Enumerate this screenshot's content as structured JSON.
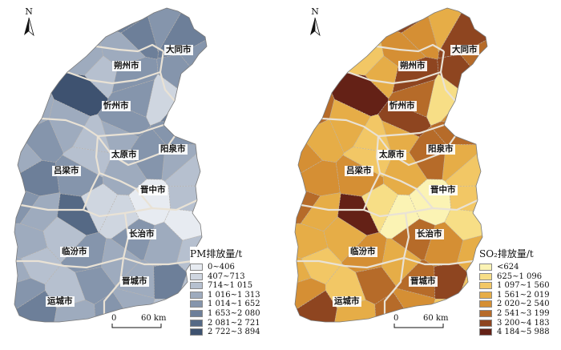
{
  "maps": [
    {
      "name": "pm",
      "legend_title": "PM排放量/t",
      "legend": [
        {
          "label": "0~406",
          "color": "#e7ebf1"
        },
        {
          "label": "407~713",
          "color": "#cfd6e0"
        },
        {
          "label": "714~1 015",
          "color": "#b6c0cf"
        },
        {
          "label": "1 016~1 313",
          "color": "#9eabbe"
        },
        {
          "label": "1 014~1 652",
          "color": "#8595ac"
        },
        {
          "label": "1 653~2 080",
          "color": "#6d7f99"
        },
        {
          "label": "2 081~2 721",
          "color": "#556985"
        },
        {
          "label": "2 722~3 894",
          "color": "#3e5270"
        }
      ]
    },
    {
      "name": "so2",
      "legend_title": "SO₂排放量/t",
      "legend": [
        {
          "label": "<624",
          "color": "#fbf3b4"
        },
        {
          "label": "625~1 096",
          "color": "#f7de86"
        },
        {
          "label": "1 097~1 560",
          "color": "#f2c765"
        },
        {
          "label": "1 561~2 019",
          "color": "#e6ad47"
        },
        {
          "label": "2 020~2 540",
          "color": "#d58f34"
        },
        {
          "label": "2 541~3 199",
          "color": "#b66b29"
        },
        {
          "label": "3 200~4 183",
          "color": "#8e4520"
        },
        {
          "label": "4 184~5 988",
          "color": "#642116"
        }
      ]
    }
  ],
  "cities": [
    "大同市",
    "朔州市",
    "忻州市",
    "太原市",
    "阳泉市",
    "吕梁市",
    "晋中市",
    "长治市",
    "临汾市",
    "晋城市",
    "运城市"
  ],
  "north_label": "N",
  "scale": {
    "start": "0",
    "end": "60 km"
  },
  "regions": [
    {
      "pm": 7,
      "so2": 7
    },
    {
      "pm": 5,
      "so2": 5
    },
    {
      "pm": 5,
      "so2": 6
    },
    {
      "pm": 4,
      "so2": 3
    },
    {
      "pm": 3,
      "so2": 2
    },
    {
      "pm": 4,
      "so2": 5
    },
    {
      "pm": 5,
      "so2": 4
    },
    {
      "pm": 5,
      "so2": 6
    },
    {
      "pm": 3,
      "so2": 3
    },
    {
      "pm": 3,
      "so2": 2
    },
    {
      "pm": 3,
      "so2": 4
    },
    {
      "pm": 4,
      "so2": 5
    },
    {
      "pm": 3,
      "so2": 4
    },
    {
      "pm": 2,
      "so2": 3
    },
    {
      "pm": 4,
      "so2": 6
    },
    {
      "pm": 4,
      "so2": 6
    },
    {
      "pm": 2,
      "so2": 1
    },
    {
      "pm": 7,
      "so2": 7
    },
    {
      "pm": 4,
      "so2": 5
    },
    {
      "pm": 1,
      "so2": 1
    },
    {
      "pm": 3,
      "so2": 5
    },
    {
      "pm": 3,
      "so2": 3
    },
    {
      "pm": 4,
      "so2": 6
    },
    {
      "pm": 5,
      "so2": 4
    },
    {
      "pm": 4,
      "so2": 3
    },
    {
      "pm": 2,
      "so2": 2
    },
    {
      "pm": 3,
      "so2": 3
    },
    {
      "pm": 4,
      "so2": 5
    },
    {
      "pm": 3,
      "so2": 4
    },
    {
      "pm": 2,
      "so2": 2
    },
    {
      "pm": 4,
      "so2": 5
    },
    {
      "pm": 3,
      "so2": 3
    },
    {
      "pm": 5,
      "so2": 4
    },
    {
      "pm": 4,
      "so2": 4
    },
    {
      "pm": 3,
      "so2": 3
    },
    {
      "pm": 2,
      "so2": 2
    },
    {
      "pm": 4,
      "so2": 5
    },
    {
      "pm": 1,
      "so2": 1
    },
    {
      "pm": 0,
      "so2": 0
    },
    {
      "pm": 2,
      "so2": 2
    },
    {
      "pm": 3,
      "so2": 3
    },
    {
      "pm": 6,
      "so2": 7
    },
    {
      "pm": 1,
      "so2": 0
    },
    {
      "pm": 0,
      "so2": 1
    },
    {
      "pm": 3,
      "so2": 3
    },
    {
      "pm": 2,
      "so2": 3
    },
    {
      "pm": 4,
      "so2": 5
    },
    {
      "pm": 3,
      "so2": 4
    },
    {
      "pm": 2,
      "so2": 2
    },
    {
      "pm": 4,
      "so2": 4
    },
    {
      "pm": 3,
      "so2": 3
    },
    {
      "pm": 2,
      "so2": 3
    },
    {
      "pm": 3,
      "so2": 3
    },
    {
      "pm": 4,
      "so2": 5
    },
    {
      "pm": 3,
      "so2": 5
    },
    {
      "pm": 5,
      "so2": 6
    },
    {
      "pm": 4,
      "so2": 4
    },
    {
      "pm": 2,
      "so2": 2
    },
    {
      "pm": 3,
      "so2": 4
    },
    {
      "pm": 2,
      "so2": 2
    },
    {
      "pm": 5,
      "so2": 6
    },
    {
      "pm": 3,
      "so2": 3
    },
    {
      "pm": 4,
      "so2": 5
    },
    {
      "pm": 2,
      "so2": 2
    }
  ]
}
